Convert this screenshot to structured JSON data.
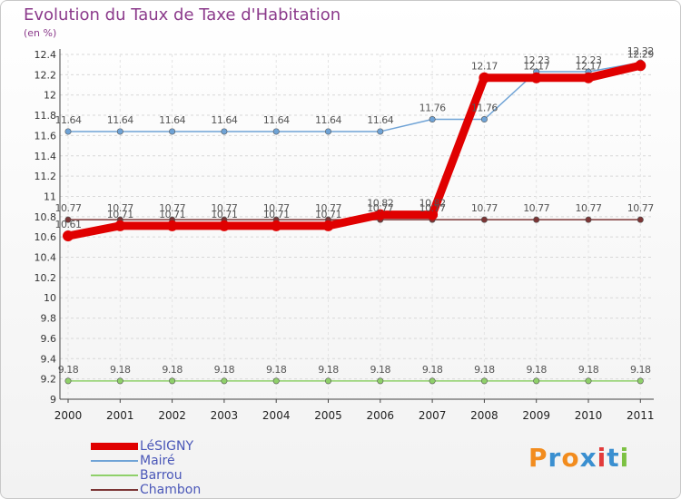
{
  "chart_data": {
    "type": "line",
    "title": "Evolution du Taux de Taxe d'Habitation",
    "ylabel": "(en %)",
    "xlabel": "",
    "categories": [
      "2000",
      "2001",
      "2002",
      "2003",
      "2004",
      "2005",
      "2006",
      "2007",
      "2008",
      "2009",
      "2010",
      "2011"
    ],
    "ylim": [
      9,
      12.4
    ],
    "yticks": [
      "9",
      "9.2",
      "9.4",
      "9.6",
      "9.8",
      "10",
      "10.2",
      "10.4",
      "10.6",
      "10.8",
      "11",
      "11.2",
      "11.4",
      "11.6",
      "11.8",
      "12",
      "12.2",
      "12.4"
    ],
    "series": [
      {
        "name": "LéSIGNY",
        "color": "#e00000",
        "values": [
          10.61,
          10.71,
          10.71,
          10.71,
          10.71,
          10.71,
          10.82,
          10.82,
          12.17,
          12.17,
          12.17,
          12.29
        ]
      },
      {
        "name": "Mairé",
        "color": "#6fa3d6",
        "values": [
          11.64,
          11.64,
          11.64,
          11.64,
          11.64,
          11.64,
          11.64,
          11.76,
          11.76,
          12.23,
          12.23,
          12.32
        ]
      },
      {
        "name": "Barrou",
        "color": "#8fd06a",
        "values": [
          9.18,
          9.18,
          9.18,
          9.18,
          9.18,
          9.18,
          9.18,
          9.18,
          9.18,
          9.18,
          9.18,
          9.18
        ]
      },
      {
        "name": "Chambon",
        "color": "#7b3535",
        "values": [
          10.77,
          10.77,
          10.77,
          10.77,
          10.77,
          10.77,
          10.77,
          10.77,
          10.77,
          10.77,
          10.77,
          10.77
        ]
      }
    ]
  },
  "logo": {
    "letters": [
      "P",
      "r",
      "o",
      "x",
      "i",
      "t",
      "i"
    ],
    "colors": [
      "#f28c1e",
      "#3a8fd0",
      "#f28c1e",
      "#3a8fd0",
      "#e23b3b",
      "#3a8fd0",
      "#7cc142"
    ]
  }
}
